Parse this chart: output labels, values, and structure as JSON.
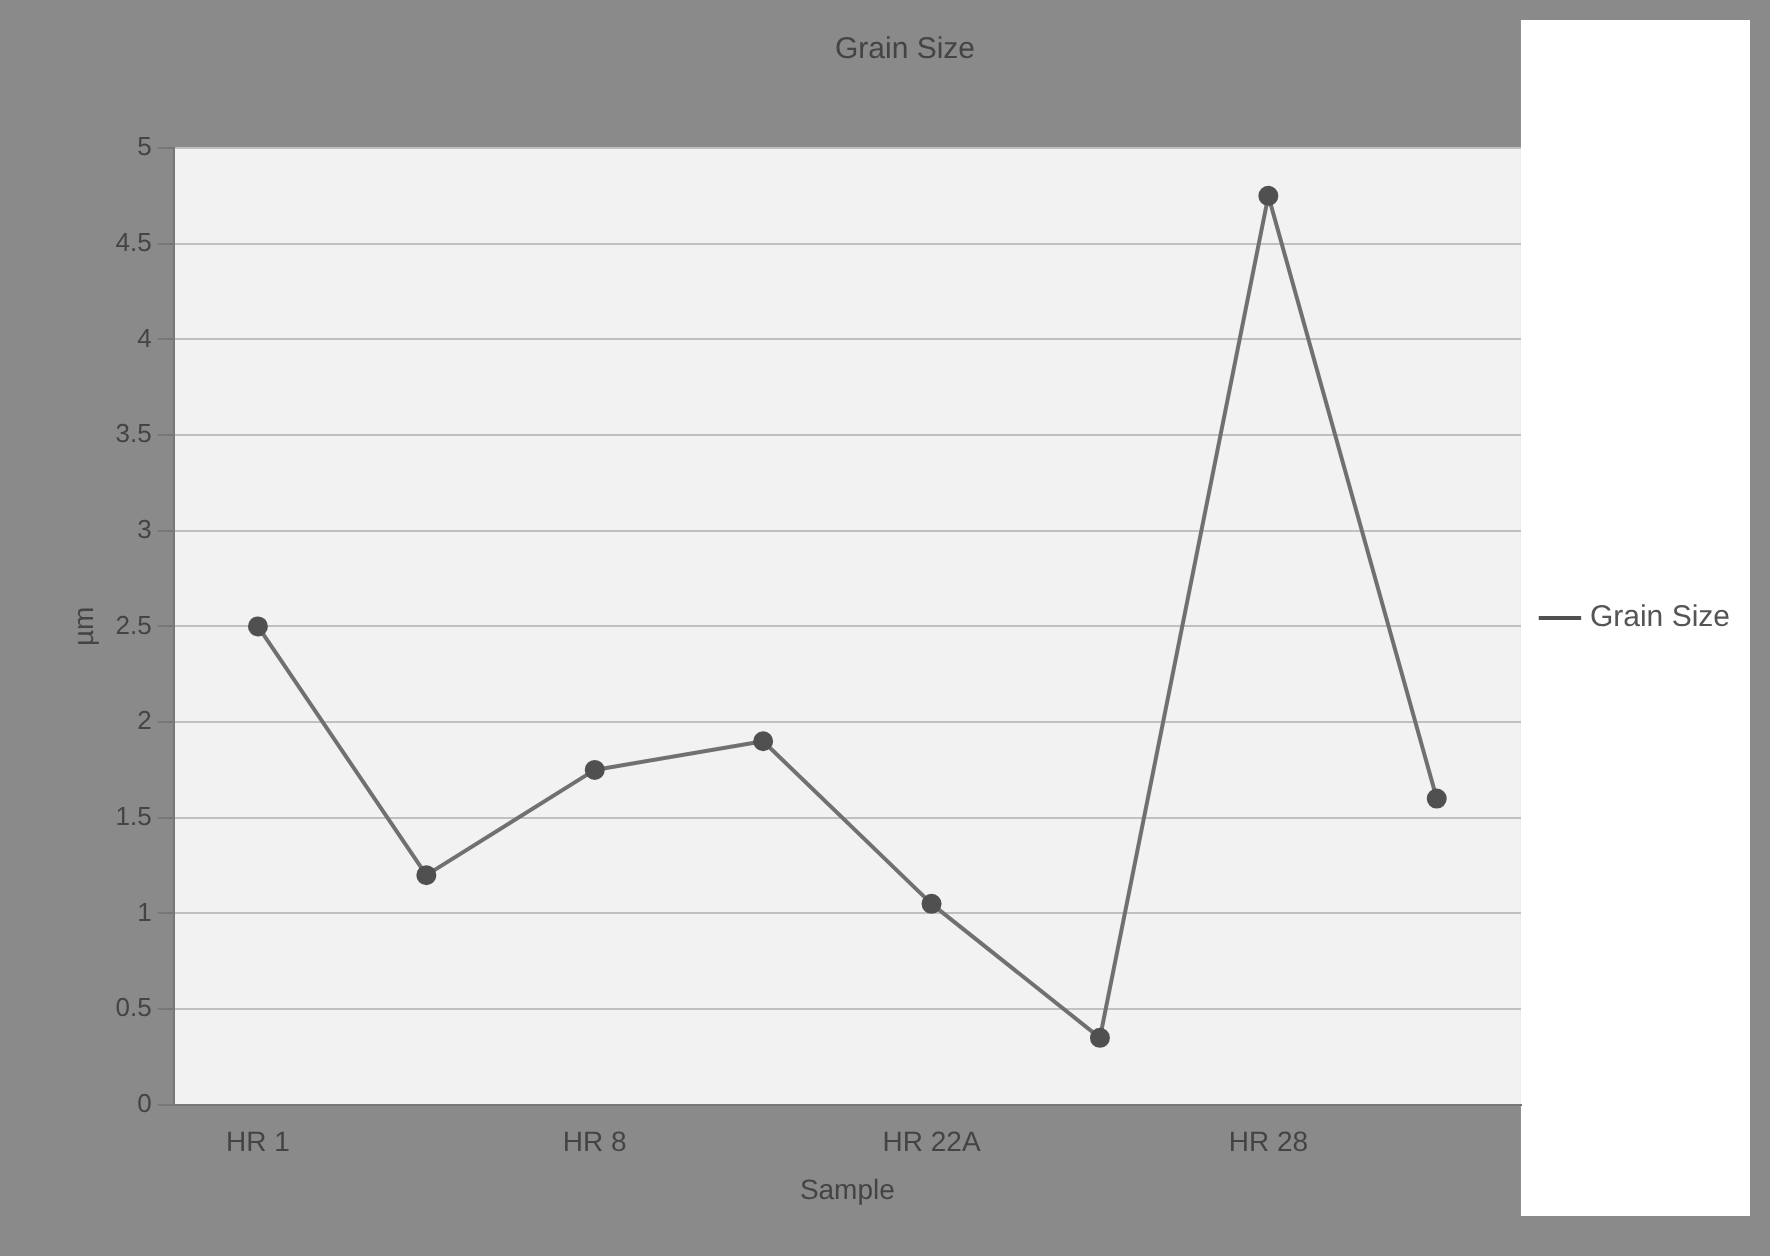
{
  "chart_data": {
    "type": "line",
    "title": "Grain Size",
    "xlabel": "Sample",
    "ylabel": "µm",
    "categories": [
      "HR 1",
      null,
      "HR 8",
      null,
      "HR 22A",
      null,
      "HR 28",
      null
    ],
    "series": [
      {
        "name": "Grain Size",
        "color": "#707070",
        "values": [
          2.5,
          1.2,
          1.75,
          1.9,
          1.05,
          0.35,
          4.75,
          1.6
        ]
      }
    ],
    "ylim": [
      0,
      5
    ],
    "yticks": [
      0,
      0.5,
      1,
      1.5,
      2,
      2.5,
      3,
      3.5,
      4,
      4.5,
      5
    ],
    "grid": "y",
    "legend": "right",
    "marker": "circle",
    "line_style": "solid"
  }
}
